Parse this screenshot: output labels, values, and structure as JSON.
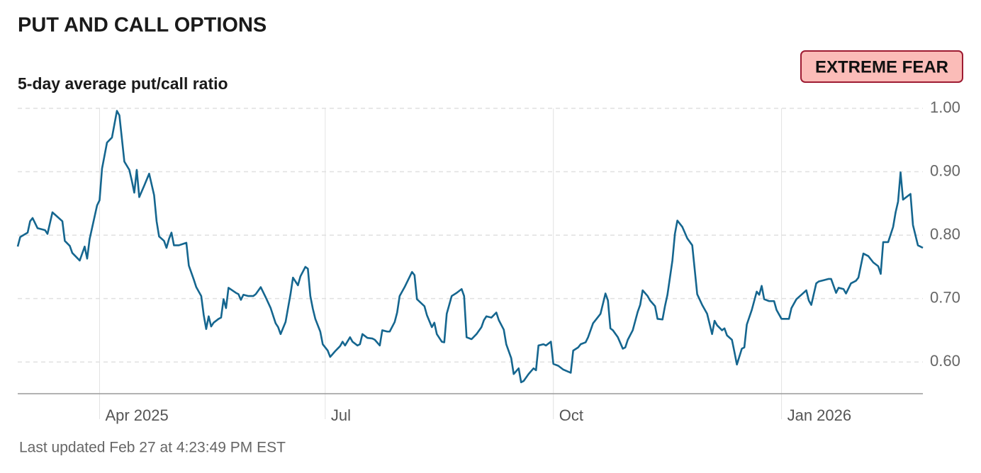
{
  "chart_data": {
    "type": "line",
    "title": "PUT AND CALL OPTIONS",
    "subtitle": "5-day average put/call ratio",
    "rating": "EXTREME FEAR",
    "footer": "Last updated Feb 27 at 4:23:49 PM EST",
    "xlim": [
      0,
      365
    ],
    "xticks": [
      {
        "value": 33,
        "label": "Apr 2025"
      },
      {
        "value": 124,
        "label": "Jul"
      },
      {
        "value": 216,
        "label": "Oct"
      },
      {
        "value": 308,
        "label": "Jan 2026"
      }
    ],
    "ylim": [
      0.55,
      1.0
    ],
    "yticks": [
      {
        "value": 0.6,
        "label": "0.60"
      },
      {
        "value": 0.7,
        "label": "0.70"
      },
      {
        "value": 0.8,
        "label": "0.80"
      },
      {
        "value": 0.9,
        "label": "0.90"
      },
      {
        "value": 1.0,
        "label": "1.00"
      }
    ],
    "grid": true,
    "x": [
      0,
      1,
      4,
      5,
      6,
      8,
      11,
      12,
      14,
      16,
      18,
      19,
      21,
      22,
      25,
      27,
      28,
      29,
      32,
      33,
      34,
      36,
      38,
      40,
      41,
      43,
      45,
      46,
      47,
      48,
      49,
      51,
      53,
      55,
      56,
      57,
      59,
      60,
      61,
      62,
      63,
      65,
      68,
      69,
      71,
      72,
      74,
      75,
      76,
      77,
      78,
      79,
      81,
      82,
      83,
      84,
      85,
      88,
      89,
      90,
      91,
      93,
      95,
      96,
      98,
      100,
      102,
      104,
      105,
      106,
      108,
      110,
      111,
      113,
      114,
      116,
      117,
      118,
      119,
      120,
      122,
      123,
      125,
      126,
      128,
      130,
      131,
      132,
      134,
      135,
      137,
      138,
      139,
      141,
      143,
      144,
      146,
      147,
      149,
      150,
      152,
      153,
      154,
      156,
      159,
      160,
      161,
      164,
      165,
      167,
      168,
      169,
      171,
      172,
      173,
      175,
      177,
      179,
      180,
      181,
      183,
      185,
      187,
      188,
      189,
      191,
      193,
      194,
      196,
      197,
      199,
      200,
      202,
      203,
      204,
      206,
      208,
      209,
      210,
      212,
      213,
      215,
      216,
      218,
      220,
      223,
      224,
      226,
      227,
      229,
      230,
      232,
      234,
      235,
      237,
      238,
      239,
      240,
      242,
      244,
      245,
      246,
      248,
      250,
      251,
      252,
      254,
      255,
      257,
      258,
      260,
      261,
      262,
      264,
      265,
      266,
      268,
      269,
      270,
      272,
      274,
      276,
      278,
      280,
      281,
      282,
      284,
      285,
      286,
      288,
      289,
      290,
      292,
      293,
      294,
      296,
      298,
      299,
      300,
      301,
      303,
      305,
      306,
      308,
      311,
      312,
      314,
      316,
      318,
      319,
      320,
      322,
      323,
      325,
      327,
      328,
      330,
      331,
      333,
      334,
      336,
      338,
      339,
      341,
      343,
      345,
      347,
      348,
      349,
      351,
      353,
      354,
      355,
      356,
      357,
      360,
      361,
      363,
      365
    ],
    "series": [
      {
        "color": "#15668f",
        "values": [
          0.782,
          0.797,
          0.804,
          0.822,
          0.827,
          0.811,
          0.808,
          0.802,
          0.836,
          0.829,
          0.822,
          0.791,
          0.783,
          0.772,
          0.76,
          0.782,
          0.763,
          0.794,
          0.847,
          0.855,
          0.905,
          0.946,
          0.954,
          0.996,
          0.989,
          0.916,
          0.903,
          0.886,
          0.867,
          0.903,
          0.86,
          0.878,
          0.897,
          0.863,
          0.822,
          0.798,
          0.791,
          0.78,
          0.794,
          0.804,
          0.784,
          0.784,
          0.788,
          0.752,
          0.73,
          0.718,
          0.704,
          0.674,
          0.652,
          0.672,
          0.656,
          0.662,
          0.668,
          0.67,
          0.699,
          0.685,
          0.717,
          0.709,
          0.707,
          0.698,
          0.706,
          0.704,
          0.704,
          0.707,
          0.718,
          0.702,
          0.685,
          0.661,
          0.655,
          0.644,
          0.663,
          0.707,
          0.733,
          0.721,
          0.735,
          0.75,
          0.747,
          0.704,
          0.684,
          0.668,
          0.648,
          0.628,
          0.618,
          0.608,
          0.617,
          0.625,
          0.632,
          0.626,
          0.639,
          0.632,
          0.626,
          0.628,
          0.644,
          0.638,
          0.637,
          0.635,
          0.626,
          0.65,
          0.648,
          0.648,
          0.663,
          0.678,
          0.704,
          0.718,
          0.742,
          0.737,
          0.699,
          0.688,
          0.674,
          0.655,
          0.662,
          0.644,
          0.632,
          0.631,
          0.676,
          0.704,
          0.709,
          0.715,
          0.704,
          0.639,
          0.636,
          0.644,
          0.655,
          0.666,
          0.672,
          0.67,
          0.678,
          0.666,
          0.651,
          0.628,
          0.606,
          0.581,
          0.59,
          0.568,
          0.57,
          0.581,
          0.59,
          0.587,
          0.626,
          0.628,
          0.626,
          0.632,
          0.597,
          0.594,
          0.588,
          0.583,
          0.618,
          0.623,
          0.628,
          0.631,
          0.639,
          0.661,
          0.671,
          0.676,
          0.708,
          0.697,
          0.653,
          0.65,
          0.639,
          0.621,
          0.623,
          0.635,
          0.65,
          0.679,
          0.69,
          0.713,
          0.704,
          0.697,
          0.688,
          0.668,
          0.667,
          0.688,
          0.706,
          0.76,
          0.802,
          0.823,
          0.813,
          0.804,
          0.795,
          0.784,
          0.707,
          0.69,
          0.676,
          0.644,
          0.665,
          0.658,
          0.65,
          0.653,
          0.642,
          0.635,
          0.616,
          0.596,
          0.621,
          0.623,
          0.659,
          0.682,
          0.711,
          0.706,
          0.72,
          0.699,
          0.696,
          0.696,
          0.682,
          0.668,
          0.668,
          0.685,
          0.699,
          0.706,
          0.713,
          0.697,
          0.69,
          0.724,
          0.727,
          0.729,
          0.731,
          0.731,
          0.709,
          0.717,
          0.715,
          0.708,
          0.724,
          0.728,
          0.733,
          0.771,
          0.767,
          0.757,
          0.751,
          0.739,
          0.789,
          0.789,
          0.813,
          0.836,
          0.853,
          0.899,
          0.856,
          0.865,
          0.816,
          0.784,
          0.78
        ]
      }
    ]
  }
}
